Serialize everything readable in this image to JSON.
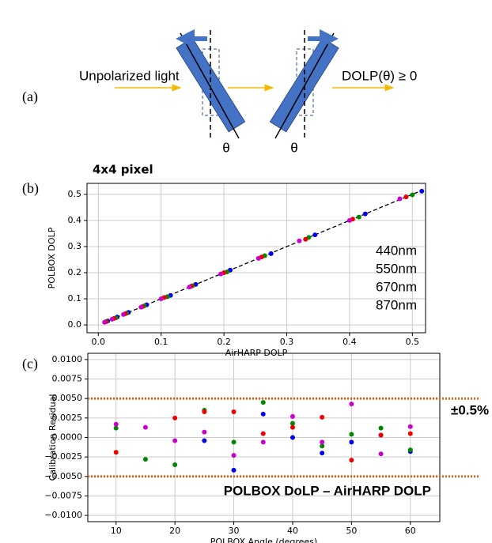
{
  "panel_a": {
    "label": "(a)",
    "left_text": "Unpolarized light",
    "right_text": "DOLP(θ) ≥ 0",
    "angle_left": "θ",
    "angle_right": "θ"
  },
  "chart_data": [
    {
      "type": "scatter",
      "label": "(b)",
      "title": "4x4 pixel",
      "x_label": "AirHARP DOLP",
      "y_label": "POLBOX DOLP",
      "xlim": [
        -0.018,
        0.521
      ],
      "ylim": [
        -0.03,
        0.542
      ],
      "xticks": [
        {
          "value": 0,
          "label": "0.0"
        },
        0.1,
        0.2,
        0.3,
        0.4,
        0.5
      ],
      "yticks": [
        {
          "value": 0,
          "label": "0.0"
        },
        0.1,
        0.2,
        0.3,
        0.4,
        0.5
      ],
      "grid": true,
      "identity_line": true,
      "legend": "right",
      "series": [
        {
          "name": "440nm",
          "color": "#0000ee",
          "x": [
            0.015,
            0.03,
            0.048,
            0.077,
            0.115,
            0.155,
            0.21,
            0.275,
            0.345,
            0.425,
            0.515
          ],
          "values": [
            0.015,
            0.03,
            0.048,
            0.077,
            0.113,
            0.155,
            0.21,
            0.273,
            0.345,
            0.425,
            0.512
          ]
        },
        {
          "name": "550nm",
          "color": "#008800",
          "x": [
            0.013,
            0.028,
            0.045,
            0.073,
            0.11,
            0.15,
            0.205,
            0.265,
            0.335,
            0.415,
            0.5
          ],
          "values": [
            0.013,
            0.027,
            0.045,
            0.073,
            0.108,
            0.15,
            0.203,
            0.265,
            0.335,
            0.413,
            0.498
          ]
        },
        {
          "name": "670nm",
          "color": "#ee0000",
          "x": [
            0.012,
            0.025,
            0.043,
            0.07,
            0.105,
            0.148,
            0.2,
            0.26,
            0.33,
            0.405,
            0.49
          ],
          "values": [
            0.012,
            0.025,
            0.043,
            0.07,
            0.105,
            0.148,
            0.2,
            0.26,
            0.328,
            0.405,
            0.49
          ]
        },
        {
          "name": "870nm",
          "color": "#cc00cc",
          "x": [
            0.01,
            0.022,
            0.04,
            0.068,
            0.1,
            0.145,
            0.195,
            0.255,
            0.32,
            0.4,
            0.48
          ],
          "values": [
            0.01,
            0.022,
            0.04,
            0.068,
            0.1,
            0.145,
            0.195,
            0.255,
            0.322,
            0.4,
            0.483
          ]
        }
      ]
    },
    {
      "type": "scatter",
      "label": "(c)",
      "x_label": "POLBOX Angle (degrees)",
      "y_label": "Calibration Residual",
      "xlim": [
        5.2,
        65
      ],
      "ylim": [
        -0.0108,
        0.0108
      ],
      "xticks": [
        10,
        20,
        30,
        40,
        50,
        60
      ],
      "yticks": [
        {
          "value": 0.01,
          "label": "0.0100"
        },
        {
          "value": 0.0075,
          "label": "0.0075"
        },
        {
          "value": 0.005,
          "label": "0.0050"
        },
        {
          "value": 0.0025,
          "label": "0.0025"
        },
        {
          "value": 0,
          "label": "0.0000"
        },
        {
          "value": -0.0025,
          "label": "−0.0025"
        },
        {
          "value": -0.005,
          "label": "−0.0050"
        },
        {
          "value": -0.0075,
          "label": "−0.0075"
        },
        {
          "value": -0.01,
          "label": "−0.0100"
        }
      ],
      "grid": true,
      "hlines": [
        0.005,
        -0.005
      ],
      "hline_color": "#d2691e",
      "annotations": [
        "±0.5%",
        "POLBOX DoLP – AirHARP DOLP"
      ],
      "annotation_color": "#d2691e",
      "x": [
        10,
        15,
        20,
        25,
        30,
        35,
        40,
        45,
        50,
        55,
        60
      ],
      "series": [
        {
          "color": "#0000ee",
          "values": [
            null,
            null,
            null,
            -0.0004,
            -0.0042,
            0.003,
            0.0,
            -0.002,
            -0.0006,
            0.0003,
            -0.0018
          ]
        },
        {
          "color": "#008800",
          "values": [
            0.0012,
            -0.0028,
            -0.0035,
            0.0035,
            -0.0006,
            0.0045,
            0.0018,
            -0.0011,
            0.0004,
            0.0012,
            -0.0016
          ]
        },
        {
          "color": "#ee0000",
          "values": [
            -0.0019,
            null,
            0.0025,
            0.0033,
            0.0033,
            0.0005,
            0.0013,
            0.0026,
            -0.0029,
            0.0003,
            0.0005
          ]
        },
        {
          "color": "#cc00cc",
          "values": [
            0.0017,
            0.0013,
            -0.0004,
            0.0007,
            -0.0023,
            -0.0006,
            0.0027,
            -0.0006,
            0.0043,
            -0.0021,
            0.0014
          ]
        }
      ]
    }
  ]
}
